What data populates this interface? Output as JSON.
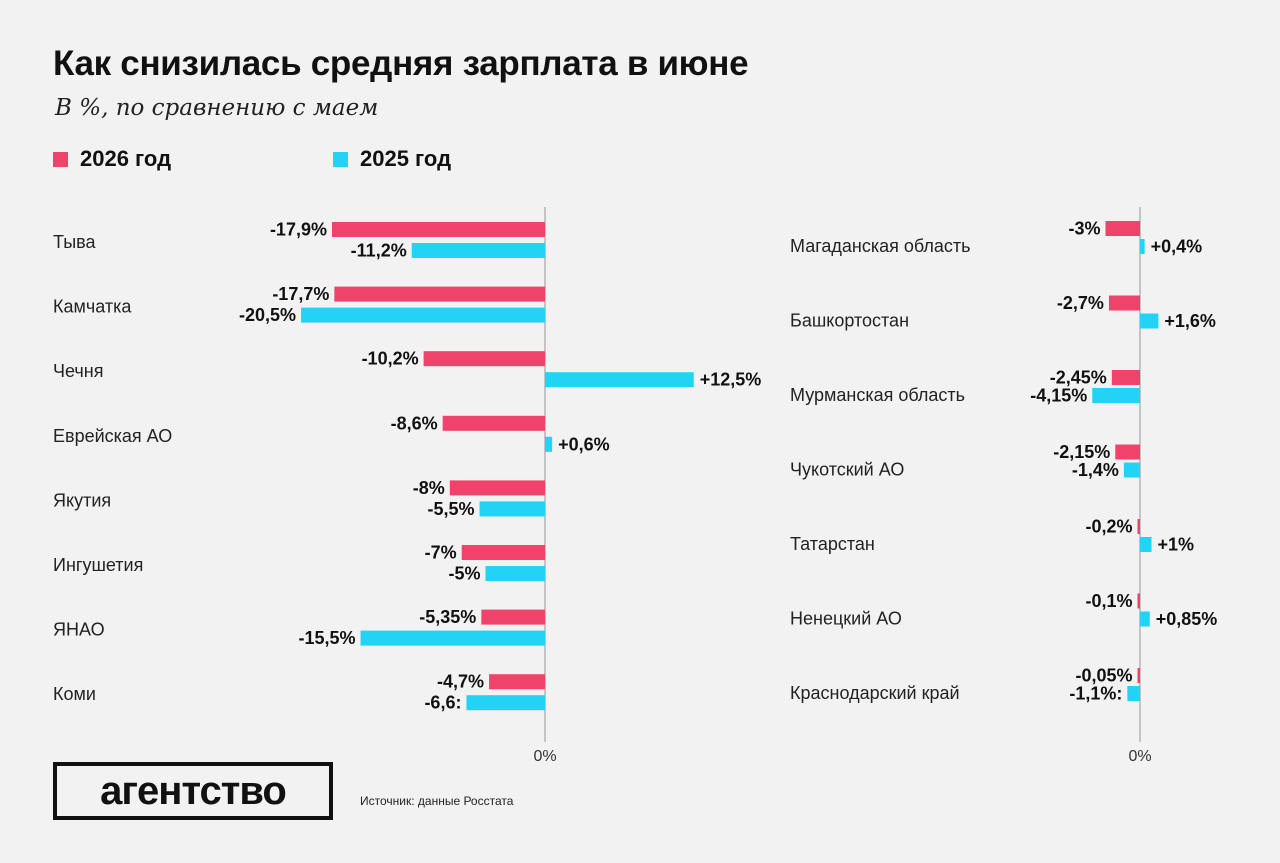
{
  "title": "Как снизилась средняя зарплата в июне",
  "subtitle": "В %, по сравнению с маем",
  "legend": [
    {
      "label": "2026 год",
      "color": "#f0436b"
    },
    {
      "label": "2025 год",
      "color": "#22d3f5"
    }
  ],
  "source": "Источник: данные Росстата",
  "logo_text": "агентство",
  "zero_label": "0%",
  "chart_data": [
    {
      "type": "bar",
      "orientation": "horizontal",
      "categories": [
        "Тыва",
        "Камчатка",
        "Чечня",
        "Еврейская АО",
        "Якутия",
        "Ингушетия",
        "ЯНАО",
        "Коми"
      ],
      "series": [
        {
          "name": "2026 год",
          "color": "#f0436b",
          "values": [
            -17.9,
            -17.7,
            -10.2,
            -8.6,
            -8,
            -7,
            -5.35,
            -4.7
          ],
          "labels": [
            "-17,9%",
            "-17,7%",
            "-10,2%",
            "-8,6%",
            "-8%",
            "-7%",
            "-5,35%",
            "-4,7%"
          ]
        },
        {
          "name": "2025 год",
          "color": "#22d3f5",
          "values": [
            -11.2,
            -20.5,
            12.5,
            0.6,
            -5.5,
            -5,
            -15.5,
            -6.6
          ],
          "labels": [
            "-11,2%",
            "-20,5%",
            "+12,5%",
            "+0,6%",
            "-5,5%",
            "-5%",
            "-15,5%",
            "-6,6:"
          ]
        }
      ],
      "zero_label": "0%"
    },
    {
      "type": "bar",
      "orientation": "horizontal",
      "categories": [
        "Магаданская область",
        "Башкортостан",
        "Мурманская область",
        "Чукотский АО",
        "Татарстан",
        "Ненецкий АО",
        "Краснодарский край"
      ],
      "series": [
        {
          "name": "2026 год",
          "color": "#f0436b",
          "values": [
            -3,
            -2.7,
            -2.45,
            -2.15,
            -0.2,
            -0.1,
            -0.05
          ],
          "labels": [
            "-3%",
            "-2,7%",
            "-2,45%",
            "-2,15%",
            "-0,2%",
            "-0,1%",
            "-0,05%"
          ]
        },
        {
          "name": "2025 год",
          "color": "#22d3f5",
          "values": [
            0.4,
            1.6,
            -4.15,
            -1.4,
            1,
            0.85,
            -1.1
          ],
          "labels": [
            "+0,4%",
            "+1,6%",
            "-4,15%",
            "-1,4%",
            "+1%",
            "+0,85%",
            "-1,1%:"
          ]
        }
      ],
      "zero_label": "0%"
    }
  ]
}
